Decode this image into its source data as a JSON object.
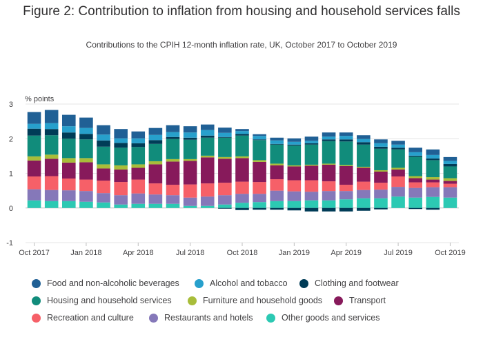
{
  "title": "Figure 2: Contribution to inflation from housing and household services falls",
  "subtitle": "Contributions to the CPIH 12-month inflation rate, UK, October 2017 to October 2019",
  "chart_data": {
    "type": "bar",
    "stacked": true,
    "ylabel": "% points",
    "ylim": [
      -1,
      3
    ],
    "yticks": [
      -1,
      0,
      1,
      2,
      3
    ],
    "grid": true,
    "legend_position": "bottom",
    "categories": [
      "Oct 2017",
      "Nov 2017",
      "Dec 2017",
      "Jan 2018",
      "Feb 2018",
      "Mar 2018",
      "Apr 2018",
      "May 2018",
      "Jun 2018",
      "Jul 2018",
      "Aug 2018",
      "Sep 2018",
      "Oct 2018",
      "Nov 2018",
      "Dec 2018",
      "Jan 2019",
      "Feb 2019",
      "Mar 2019",
      "Apr 2019",
      "May 2019",
      "Jun 2019",
      "Jul 2019",
      "Aug 2019",
      "Sep 2019",
      "Oct 2019"
    ],
    "xtick_labels": [
      "Oct 2017",
      "Jan 2018",
      "Apr 2018",
      "Jul 2018",
      "Oct 2018",
      "Jan 2019",
      "Apr 2019",
      "Jul 2019",
      "Oct 2019"
    ],
    "series": [
      {
        "name": "Other goods and services",
        "color": "#2cc9b3",
        "values": [
          0.22,
          0.2,
          0.2,
          0.18,
          0.16,
          0.1,
          0.12,
          0.12,
          0.12,
          0.06,
          0.06,
          0.1,
          0.15,
          0.17,
          0.2,
          0.2,
          0.22,
          0.22,
          0.25,
          0.28,
          0.28,
          0.33,
          0.3,
          0.32,
          0.3
        ]
      },
      {
        "name": "Restaurants and hotels",
        "color": "#8578b9",
        "values": [
          0.32,
          0.32,
          0.31,
          0.31,
          0.27,
          0.27,
          0.3,
          0.27,
          0.25,
          0.24,
          0.27,
          0.27,
          0.26,
          0.24,
          0.3,
          0.28,
          0.25,
          0.27,
          0.24,
          0.24,
          0.25,
          0.28,
          0.28,
          0.28,
          0.3
        ]
      },
      {
        "name": "Recreation and culture",
        "color": "#f66068",
        "values": [
          0.37,
          0.4,
          0.34,
          0.33,
          0.36,
          0.38,
          0.4,
          0.32,
          0.3,
          0.38,
          0.38,
          0.36,
          0.35,
          0.34,
          0.33,
          0.32,
          0.33,
          0.28,
          0.18,
          0.24,
          0.2,
          0.3,
          0.16,
          0.14,
          0.1
        ]
      },
      {
        "name": "Transport",
        "color": "#871a5b",
        "values": [
          0.46,
          0.5,
          0.46,
          0.5,
          0.35,
          0.36,
          0.34,
          0.55,
          0.67,
          0.68,
          0.75,
          0.69,
          0.68,
          0.58,
          0.4,
          0.4,
          0.42,
          0.48,
          0.54,
          0.4,
          0.32,
          0.2,
          0.12,
          0.08,
          0.08
        ]
      },
      {
        "name": "Furniture and household goods",
        "color": "#a8bd3a",
        "values": [
          0.12,
          0.12,
          0.13,
          0.12,
          0.12,
          0.12,
          0.1,
          0.09,
          0.07,
          0.05,
          0.05,
          0.05,
          0.05,
          0.05,
          0.05,
          0.03,
          0.03,
          0.03,
          0.03,
          0.03,
          0.04,
          0.05,
          0.06,
          0.07,
          0.08
        ]
      },
      {
        "name": "Housing and household services",
        "color": "#118c7b",
        "values": [
          0.6,
          0.56,
          0.56,
          0.54,
          0.51,
          0.51,
          0.5,
          0.5,
          0.58,
          0.56,
          0.52,
          0.56,
          0.6,
          0.58,
          0.55,
          0.57,
          0.58,
          0.65,
          0.68,
          0.64,
          0.62,
          0.53,
          0.56,
          0.49,
          0.34
        ]
      },
      {
        "name": "Clothing and footwear",
        "color": "#003c57",
        "values": [
          0.2,
          0.18,
          0.18,
          0.16,
          0.18,
          0.14,
          0.11,
          0.11,
          0.06,
          0.06,
          0.06,
          0.02,
          0.05,
          0.02,
          0.02,
          0.03,
          0.04,
          0.05,
          0.06,
          0.07,
          0.06,
          0.05,
          0.03,
          0.05,
          0.07
        ]
      },
      {
        "name": "Alcohol and tobacco",
        "color": "#27a0cc",
        "values": [
          0.14,
          0.17,
          0.18,
          0.17,
          0.17,
          0.13,
          0.14,
          0.15,
          0.14,
          0.15,
          0.16,
          0.12,
          0.08,
          0.1,
          0.1,
          0.08,
          0.07,
          0.08,
          0.1,
          0.09,
          0.1,
          0.09,
          0.1,
          0.1,
          0.09
        ]
      },
      {
        "name": "Food and non-alcoholic beverages",
        "color": "#206095",
        "values": [
          0.34,
          0.38,
          0.33,
          0.3,
          0.27,
          0.27,
          0.2,
          0.2,
          0.2,
          0.18,
          0.16,
          0.15,
          0.06,
          0.05,
          0.08,
          0.1,
          0.12,
          0.12,
          0.1,
          0.11,
          0.11,
          0.11,
          0.13,
          0.16,
          0.11
        ]
      },
      {
        "name": "Clothing and footwear (negative)",
        "color": "#003c57",
        "values": [
          0,
          0,
          0,
          0,
          0,
          0,
          0,
          0,
          0,
          0,
          0,
          -0.02,
          -0.06,
          -0.05,
          -0.05,
          -0.07,
          -0.1,
          -0.1,
          -0.1,
          -0.08,
          -0.04,
          0,
          -0.03,
          -0.05,
          0
        ]
      }
    ]
  },
  "legend": [
    {
      "label": "Food and non-alcoholic beverages",
      "color": "#206095"
    },
    {
      "label": "Alcohol and tobacco",
      "color": "#27a0cc"
    },
    {
      "label": "Clothing and footwear",
      "color": "#003c57"
    },
    {
      "label": "Housing and household services",
      "color": "#118c7b"
    },
    {
      "label": "Furniture and household goods",
      "color": "#a8bd3a"
    },
    {
      "label": "Transport",
      "color": "#871a5b"
    },
    {
      "label": "Recreation and culture",
      "color": "#f66068"
    },
    {
      "label": "Restaurants and hotels",
      "color": "#8578b9"
    },
    {
      "label": "Other goods and services",
      "color": "#2cc9b3"
    }
  ]
}
